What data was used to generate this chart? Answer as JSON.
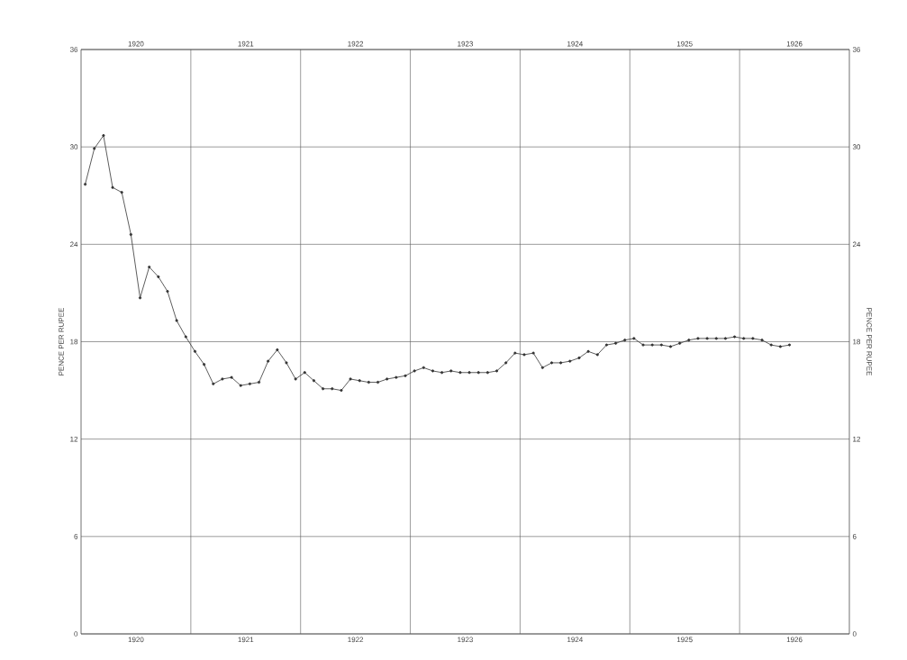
{
  "chart_data": {
    "type": "line",
    "x": [
      "1920-01-15",
      "1920-02-15",
      "1920-03-15",
      "1920-04-15",
      "1920-05-15",
      "1920-06-15",
      "1920-07-15",
      "1920-08-15",
      "1920-09-15",
      "1920-10-15",
      "1920-11-15",
      "1920-12-15",
      "1921-01-15",
      "1921-02-15",
      "1921-03-15",
      "1921-04-15",
      "1921-05-15",
      "1921-06-15",
      "1921-07-15",
      "1921-08-15",
      "1921-09-15",
      "1921-10-15",
      "1921-11-15",
      "1921-12-15",
      "1922-01-15",
      "1922-02-15",
      "1922-03-15",
      "1922-04-15",
      "1922-05-15",
      "1922-06-15",
      "1922-07-15",
      "1922-08-15",
      "1922-09-15",
      "1922-10-15",
      "1922-11-15",
      "1922-12-15",
      "1923-01-15",
      "1923-02-15",
      "1923-03-15",
      "1923-04-15",
      "1923-05-15",
      "1923-06-15",
      "1923-07-15",
      "1923-08-15",
      "1923-09-15",
      "1923-10-15",
      "1923-11-15",
      "1923-12-15",
      "1924-01-15",
      "1924-02-15",
      "1924-03-15",
      "1924-04-15",
      "1924-05-15",
      "1924-06-15",
      "1924-07-15",
      "1924-08-15",
      "1924-09-15",
      "1924-10-15",
      "1924-11-15",
      "1924-12-15",
      "1925-01-15",
      "1925-02-15",
      "1925-03-15",
      "1925-04-15",
      "1925-05-15",
      "1925-06-15",
      "1925-07-15",
      "1925-08-15",
      "1925-09-15",
      "1925-10-15",
      "1925-11-15",
      "1925-12-15",
      "1926-01-15",
      "1926-02-15",
      "1926-03-15",
      "1926-04-15",
      "1926-05-15",
      "1926-06-15"
    ],
    "series": [
      {
        "color": "#333333",
        "values": [
          27.7,
          29.9,
          30.7,
          27.5,
          27.2,
          24.6,
          20.7,
          22.6,
          22.0,
          21.1,
          19.3,
          18.3,
          17.4,
          16.6,
          15.4,
          15.7,
          15.8,
          15.3,
          15.4,
          15.5,
          16.8,
          17.5,
          16.7,
          15.7,
          16.1,
          15.6,
          15.1,
          15.1,
          15.0,
          15.7,
          15.6,
          15.5,
          15.5,
          15.7,
          15.8,
          15.9,
          16.2,
          16.4,
          16.2,
          16.1,
          16.2,
          16.1,
          16.1,
          16.1,
          16.1,
          16.2,
          16.7,
          17.3,
          17.2,
          17.3,
          16.4,
          16.7,
          16.7,
          16.8,
          17.0,
          17.4,
          17.2,
          17.8,
          17.9,
          18.1,
          18.2,
          17.8,
          17.8,
          17.8,
          17.7,
          17.9,
          18.1,
          18.2,
          18.2,
          18.2,
          18.2,
          18.3,
          18.2,
          18.2,
          18.1,
          17.8,
          17.7,
          17.8
        ]
      }
    ],
    "ylabel": "PENCE PER RUPEE",
    "y2label": "PENCE PER RUPEE",
    "xlim": [
      "1920-01-01",
      "1927-01-01"
    ],
    "x2lim": [
      "1920-01-01",
      "1927-01-01"
    ],
    "xticks": [
      {
        "value": "1920-07-01",
        "label": "1920"
      },
      {
        "value": "1921-07-01",
        "label": "1921"
      },
      {
        "value": "1922-07-01",
        "label": "1922"
      },
      {
        "value": "1923-07-01",
        "label": "1923"
      },
      {
        "value": "1924-07-01",
        "label": "1924"
      },
      {
        "value": "1925-07-01",
        "label": "1925"
      },
      {
        "value": "1926-07-01",
        "label": "1926"
      },
      {
        "value": "1921-01-01",
        "label": null
      },
      {
        "value": "1922-01-01",
        "label": null
      },
      {
        "value": "1923-01-01",
        "label": null
      },
      {
        "value": "1924-01-01",
        "label": null
      },
      {
        "value": "1925-01-01",
        "label": null
      },
      {
        "value": "1926-01-01",
        "label": null
      }
    ],
    "x2ticks": [
      {
        "value": "1920-07-01",
        "label": "1920"
      },
      {
        "value": "1921-07-01",
        "label": "1921"
      },
      {
        "value": "1922-07-01",
        "label": "1922"
      },
      {
        "value": "1923-07-01",
        "label": "1923"
      },
      {
        "value": "1924-07-01",
        "label": "1924"
      },
      {
        "value": "1925-07-01",
        "label": "1925"
      },
      {
        "value": "1926-07-01",
        "label": "1926"
      }
    ],
    "ylim": [
      0,
      36
    ],
    "yticks": [
      0,
      6,
      12,
      18,
      24,
      30,
      36
    ],
    "y2lim": [
      0,
      36
    ],
    "y2ticks": [
      0,
      6,
      12,
      18,
      24,
      30,
      36
    ],
    "grid": true,
    "marker": "circle",
    "line_style": "solid"
  }
}
